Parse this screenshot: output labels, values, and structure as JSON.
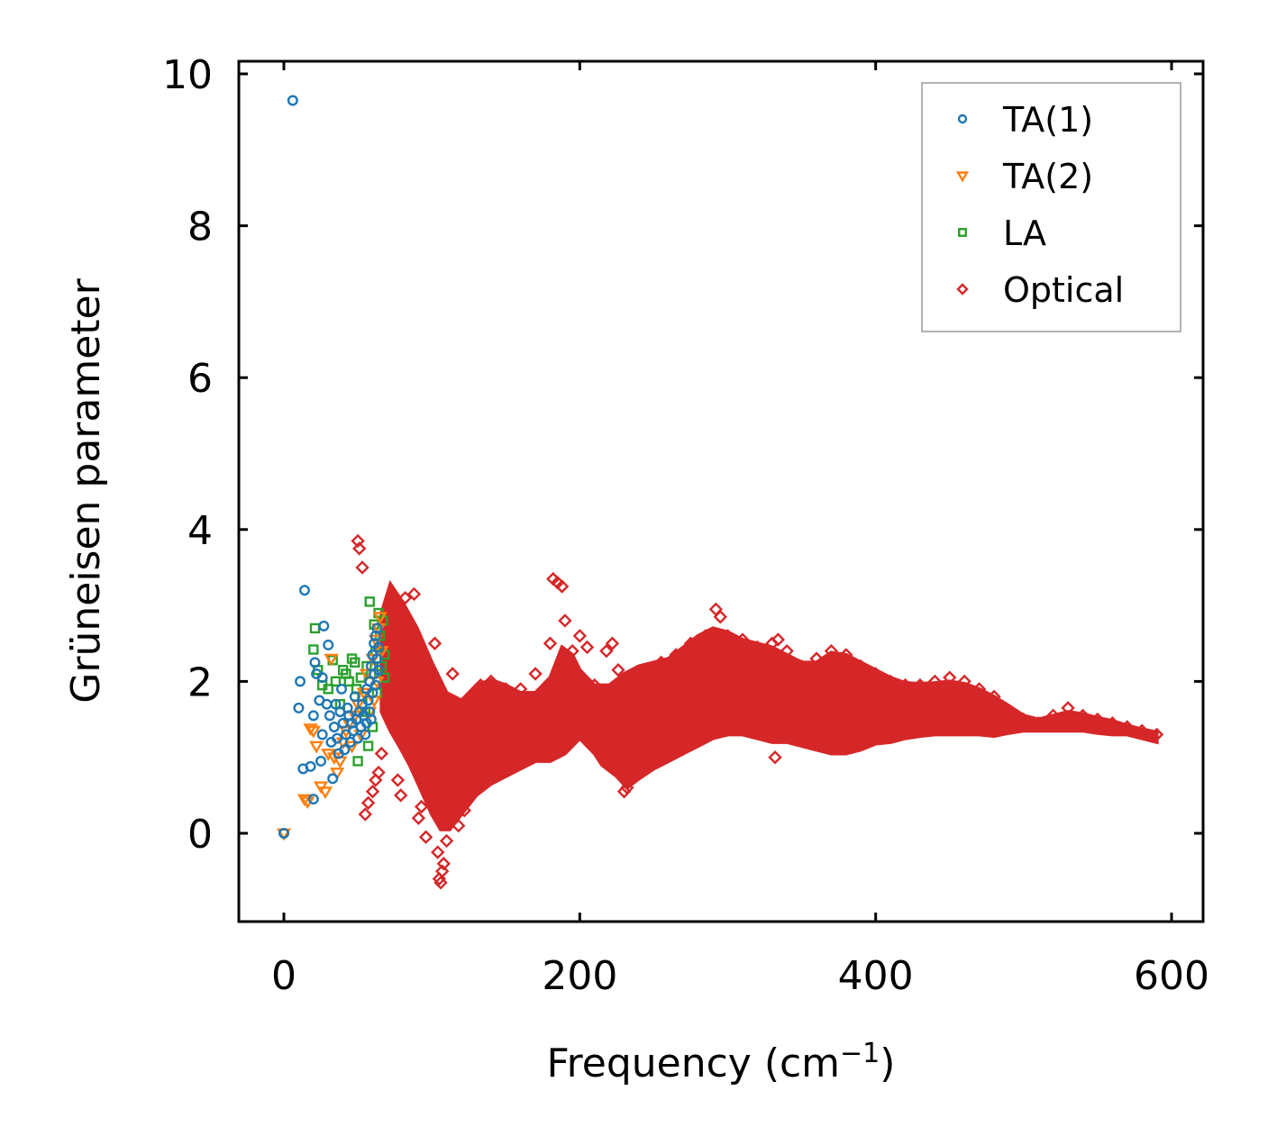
{
  "chart_data": {
    "type": "scatter",
    "title": "",
    "xlabel": "Frequency (cm",
    "xlabel_sup": "−1",
    "xlabel_close": ")",
    "ylabel": "Grüneisen parameter",
    "xlim": [
      -30,
      620
    ],
    "ylim": [
      -1.15,
      10.2
    ],
    "xticks": [
      0,
      200,
      400,
      600
    ],
    "xtick_labels": [
      "0",
      "200",
      "400",
      "600"
    ],
    "yticks": [
      0,
      2,
      4,
      6,
      8,
      10
    ],
    "ytick_labels": [
      "0",
      "2",
      "4",
      "6",
      "8",
      "10"
    ],
    "grid": false,
    "legend_position": "top-right",
    "series": [
      {
        "name": "TA(1)",
        "marker": "circle",
        "color": "#1f77b4",
        "points": [
          [
            0,
            0
          ],
          [
            6,
            9.65
          ],
          [
            10,
            1.65
          ],
          [
            11,
            2.0
          ],
          [
            13,
            0.85
          ],
          [
            14,
            3.2
          ],
          [
            18,
            0.88
          ],
          [
            20,
            1.55
          ],
          [
            20,
            0.45
          ],
          [
            21,
            2.25
          ],
          [
            22,
            2.1
          ],
          [
            24,
            1.75
          ],
          [
            25,
            0.95
          ],
          [
            26,
            2.05
          ],
          [
            26,
            1.3
          ],
          [
            27,
            2.73
          ],
          [
            29,
            1.7
          ],
          [
            30,
            2.48
          ],
          [
            31,
            1.55
          ],
          [
            32,
            1.2
          ],
          [
            33,
            0.72
          ],
          [
            34,
            1.4
          ],
          [
            35,
            1.7
          ],
          [
            36,
            1.25
          ],
          [
            37,
            1.05
          ],
          [
            38,
            1.6
          ],
          [
            39,
            1.9
          ],
          [
            40,
            1.45
          ],
          [
            41,
            1.1
          ],
          [
            42,
            1.3
          ],
          [
            43,
            1.65
          ],
          [
            44,
            1.55
          ],
          [
            45,
            1.2
          ],
          [
            46,
            1.45
          ],
          [
            47,
            1.35
          ],
          [
            48,
            1.8
          ],
          [
            49,
            1.5
          ],
          [
            50,
            1.25
          ],
          [
            51,
            1.6
          ],
          [
            52,
            1.4
          ],
          [
            53,
            1.7
          ],
          [
            54,
            1.55
          ],
          [
            55,
            1.3
          ],
          [
            56,
            1.9
          ],
          [
            56,
            1.45
          ],
          [
            57,
            1.75
          ],
          [
            58,
            2.0
          ],
          [
            58,
            1.6
          ],
          [
            59,
            2.2
          ],
          [
            59,
            1.5
          ],
          [
            60,
            2.35
          ],
          [
            60,
            1.85
          ],
          [
            61,
            2.5
          ],
          [
            61,
            2.1
          ],
          [
            62,
            2.6
          ],
          [
            62,
            1.95
          ],
          [
            63,
            2.7
          ],
          [
            63,
            2.3
          ],
          [
            64,
            2.45
          ],
          [
            64,
            2.15
          ]
        ]
      },
      {
        "name": "TA(2)",
        "marker": "triangle-down",
        "color": "#ff7f0e",
        "points": [
          [
            0,
            0
          ],
          [
            14,
            0.45
          ],
          [
            16,
            0.42
          ],
          [
            18,
            1.38
          ],
          [
            20,
            1.35
          ],
          [
            22,
            1.15
          ],
          [
            25,
            0.62
          ],
          [
            28,
            0.55
          ],
          [
            30,
            1.05
          ],
          [
            32,
            2.3
          ],
          [
            34,
            1.0
          ],
          [
            36,
            0.8
          ],
          [
            38,
            0.95
          ],
          [
            40,
            1.2
          ],
          [
            42,
            1.35
          ],
          [
            44,
            1.45
          ],
          [
            46,
            1.15
          ],
          [
            48,
            1.55
          ],
          [
            50,
            1.7
          ],
          [
            52,
            1.3
          ],
          [
            54,
            1.85
          ],
          [
            56,
            2.1
          ],
          [
            58,
            1.6
          ],
          [
            60,
            2.3
          ],
          [
            61,
            1.75
          ],
          [
            62,
            2.55
          ],
          [
            63,
            2.0
          ],
          [
            64,
            2.7
          ],
          [
            65,
            2.85
          ],
          [
            66,
            2.4
          ]
        ]
      },
      {
        "name": "LA",
        "marker": "square",
        "color": "#2ca02c",
        "points": [
          [
            20,
            2.42
          ],
          [
            21,
            2.7
          ],
          [
            23,
            2.15
          ],
          [
            26,
            1.95
          ],
          [
            30,
            1.9
          ],
          [
            33,
            2.28
          ],
          [
            35,
            2.0
          ],
          [
            38,
            1.7
          ],
          [
            40,
            2.15
          ],
          [
            42,
            2.1
          ],
          [
            44,
            2.0
          ],
          [
            46,
            2.3
          ],
          [
            48,
            2.25
          ],
          [
            49,
            1.9
          ],
          [
            50,
            0.95
          ],
          [
            52,
            2.05
          ],
          [
            53,
            1.8
          ],
          [
            55,
            1.6
          ],
          [
            56,
            2.2
          ],
          [
            57,
            1.15
          ],
          [
            58,
            3.05
          ],
          [
            59,
            2.1
          ],
          [
            60,
            1.4
          ],
          [
            61,
            2.75
          ],
          [
            62,
            2.4
          ],
          [
            63,
            1.85
          ],
          [
            64,
            2.9
          ],
          [
            65,
            2.6
          ],
          [
            66,
            2.2
          ],
          [
            67,
            2.8
          ],
          [
            68,
            2.35
          ],
          [
            68,
            2.05
          ]
        ]
      },
      {
        "name": "Optical",
        "marker": "diamond",
        "color": "#d62728",
        "points": [
          [
            50,
            3.85
          ],
          [
            51,
            3.75
          ],
          [
            53,
            3.5
          ],
          [
            55,
            0.25
          ],
          [
            57,
            0.4
          ],
          [
            60,
            0.55
          ],
          [
            62,
            0.7
          ],
          [
            64,
            0.8
          ],
          [
            66,
            1.05
          ],
          [
            72,
            3.05
          ],
          [
            77,
            0.7
          ],
          [
            79,
            0.5
          ],
          [
            82,
            3.1
          ],
          [
            88,
            3.15
          ],
          [
            91,
            0.2
          ],
          [
            93,
            0.35
          ],
          [
            96,
            -0.05
          ],
          [
            98,
            2.05
          ],
          [
            100,
            2.1
          ],
          [
            102,
            2.5
          ],
          [
            104,
            -0.25
          ],
          [
            105,
            -0.6
          ],
          [
            106,
            -0.65
          ],
          [
            107,
            -0.5
          ],
          [
            108,
            -0.4
          ],
          [
            110,
            -0.1
          ],
          [
            112,
            0.15
          ],
          [
            114,
            2.1
          ],
          [
            116,
            0.35
          ],
          [
            118,
            0.1
          ],
          [
            122,
            0.3
          ],
          [
            126,
            0.5
          ],
          [
            133,
            1.95
          ],
          [
            140,
            2.0
          ],
          [
            150,
            1.9
          ],
          [
            160,
            1.9
          ],
          [
            170,
            2.1
          ],
          [
            180,
            2.5
          ],
          [
            182,
            3.35
          ],
          [
            185,
            3.3
          ],
          [
            188,
            3.25
          ],
          [
            190,
            2.8
          ],
          [
            195,
            2.4
          ],
          [
            200,
            2.6
          ],
          [
            205,
            2.45
          ],
          [
            210,
            1.95
          ],
          [
            215,
            1.7
          ],
          [
            218,
            2.4
          ],
          [
            222,
            2.5
          ],
          [
            226,
            2.15
          ],
          [
            230,
            0.55
          ],
          [
            232,
            0.6
          ],
          [
            235,
            1.85
          ],
          [
            245,
            2.1
          ],
          [
            255,
            2.25
          ],
          [
            265,
            2.35
          ],
          [
            275,
            2.5
          ],
          [
            285,
            2.6
          ],
          [
            292,
            2.95
          ],
          [
            295,
            2.85
          ],
          [
            300,
            2.6
          ],
          [
            310,
            2.55
          ],
          [
            320,
            2.45
          ],
          [
            330,
            2.5
          ],
          [
            332,
            1.0
          ],
          [
            334,
            2.55
          ],
          [
            340,
            2.4
          ],
          [
            350,
            2.2
          ],
          [
            360,
            2.3
          ],
          [
            370,
            2.4
          ],
          [
            380,
            2.35
          ],
          [
            390,
            2.2
          ],
          [
            400,
            2.1
          ],
          [
            410,
            2.0
          ],
          [
            420,
            1.95
          ],
          [
            430,
            1.95
          ],
          [
            440,
            2.0
          ],
          [
            450,
            2.05
          ],
          [
            460,
            2.0
          ],
          [
            470,
            1.9
          ],
          [
            480,
            1.8
          ],
          [
            490,
            1.6
          ],
          [
            500,
            1.5
          ],
          [
            510,
            1.45
          ],
          [
            520,
            1.55
          ],
          [
            530,
            1.65
          ],
          [
            540,
            1.55
          ],
          [
            550,
            1.5
          ],
          [
            560,
            1.45
          ],
          [
            570,
            1.4
          ],
          [
            580,
            1.35
          ],
          [
            590,
            1.3
          ]
        ]
      }
    ],
    "optical_band": {
      "upper": [
        [
          66,
          2.9
        ],
        [
          72,
          3.28
        ],
        [
          80,
          3.05
        ],
        [
          90,
          2.7
        ],
        [
          100,
          2.25
        ],
        [
          110,
          1.85
        ],
        [
          120,
          1.75
        ],
        [
          130,
          1.95
        ],
        [
          140,
          2.02
        ],
        [
          150,
          1.95
        ],
        [
          160,
          1.85
        ],
        [
          170,
          1.85
        ],
        [
          180,
          2.05
        ],
        [
          188,
          2.45
        ],
        [
          195,
          2.35
        ],
        [
          200,
          2.15
        ],
        [
          210,
          1.95
        ],
        [
          220,
          1.95
        ],
        [
          230,
          2.1
        ],
        [
          240,
          2.2
        ],
        [
          250,
          2.25
        ],
        [
          260,
          2.3
        ],
        [
          270,
          2.45
        ],
        [
          280,
          2.6
        ],
        [
          290,
          2.7
        ],
        [
          300,
          2.65
        ],
        [
          310,
          2.55
        ],
        [
          320,
          2.5
        ],
        [
          330,
          2.45
        ],
        [
          340,
          2.35
        ],
        [
          350,
          2.25
        ],
        [
          360,
          2.25
        ],
        [
          370,
          2.38
        ],
        [
          380,
          2.35
        ],
        [
          390,
          2.25
        ],
        [
          400,
          2.15
        ],
        [
          410,
          2.05
        ],
        [
          420,
          1.98
        ],
        [
          430,
          1.97
        ],
        [
          440,
          1.98
        ],
        [
          450,
          2.0
        ],
        [
          460,
          1.97
        ],
        [
          470,
          1.9
        ],
        [
          480,
          1.8
        ],
        [
          490,
          1.68
        ],
        [
          500,
          1.55
        ],
        [
          510,
          1.5
        ],
        [
          520,
          1.55
        ],
        [
          530,
          1.6
        ],
        [
          540,
          1.57
        ],
        [
          550,
          1.52
        ],
        [
          560,
          1.48
        ],
        [
          570,
          1.42
        ],
        [
          580,
          1.37
        ],
        [
          590,
          1.33
        ]
      ],
      "lower": [
        [
          590,
          1.2
        ],
        [
          580,
          1.25
        ],
        [
          570,
          1.3
        ],
        [
          560,
          1.3
        ],
        [
          550,
          1.32
        ],
        [
          540,
          1.35
        ],
        [
          530,
          1.35
        ],
        [
          520,
          1.35
        ],
        [
          510,
          1.35
        ],
        [
          500,
          1.35
        ],
        [
          490,
          1.32
        ],
        [
          480,
          1.28
        ],
        [
          470,
          1.3
        ],
        [
          460,
          1.3
        ],
        [
          450,
          1.3
        ],
        [
          440,
          1.3
        ],
        [
          430,
          1.28
        ],
        [
          420,
          1.25
        ],
        [
          410,
          1.2
        ],
        [
          400,
          1.18
        ],
        [
          390,
          1.1
        ],
        [
          380,
          1.05
        ],
        [
          370,
          1.05
        ],
        [
          360,
          1.1
        ],
        [
          350,
          1.15
        ],
        [
          340,
          1.2
        ],
        [
          330,
          1.2
        ],
        [
          320,
          1.25
        ],
        [
          310,
          1.3
        ],
        [
          300,
          1.3
        ],
        [
          290,
          1.25
        ],
        [
          280,
          1.15
        ],
        [
          270,
          1.05
        ],
        [
          260,
          0.95
        ],
        [
          250,
          0.85
        ],
        [
          240,
          0.72
        ],
        [
          232,
          0.6
        ],
        [
          225,
          0.75
        ],
        [
          215,
          0.9
        ],
        [
          210,
          1.05
        ],
        [
          205,
          1.15
        ],
        [
          200,
          1.25
        ],
        [
          195,
          1.15
        ],
        [
          190,
          1.05
        ],
        [
          180,
          0.95
        ],
        [
          170,
          0.95
        ],
        [
          160,
          0.85
        ],
        [
          150,
          0.75
        ],
        [
          140,
          0.65
        ],
        [
          130,
          0.5
        ],
        [
          120,
          0.25
        ],
        [
          112,
          0.05
        ],
        [
          106,
          0.05
        ],
        [
          100,
          0.25
        ],
        [
          92,
          0.6
        ],
        [
          85,
          0.9
        ],
        [
          78,
          1.15
        ],
        [
          72,
          1.35
        ],
        [
          66,
          1.6
        ]
      ]
    }
  }
}
